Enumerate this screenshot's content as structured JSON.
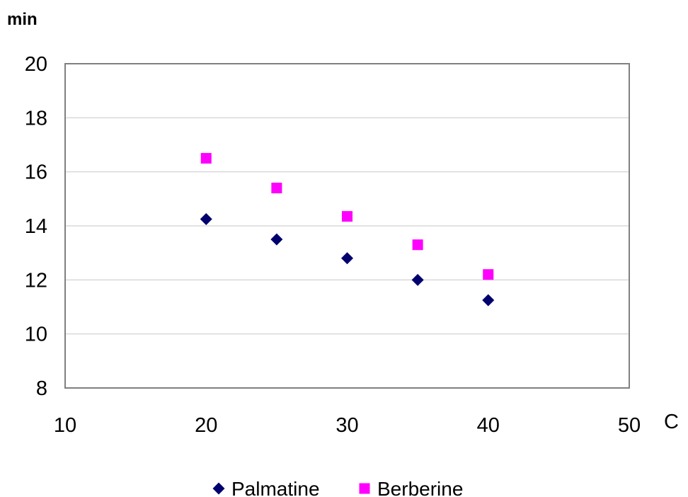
{
  "chart_data": {
    "type": "scatter",
    "xlabel": "C",
    "ylabel": "min",
    "xlim": [
      10,
      50
    ],
    "ylim": [
      8,
      20
    ],
    "x_ticks": [
      "10",
      "20",
      "30",
      "40",
      "50"
    ],
    "y_ticks": [
      "8",
      "10",
      "12",
      "14",
      "16",
      "18",
      "20"
    ],
    "grid": "horizontal",
    "legend_position": "bottom",
    "series": [
      {
        "name": "Palmatine",
        "marker": "diamond",
        "color": "#00006e",
        "points": [
          {
            "x": 20,
            "y": 14.25
          },
          {
            "x": 25,
            "y": 13.5
          },
          {
            "x": 30,
            "y": 12.8
          },
          {
            "x": 35,
            "y": 12.0
          },
          {
            "x": 40,
            "y": 11.25
          }
        ]
      },
      {
        "name": "Berberine",
        "marker": "square",
        "color": "#ff00ff",
        "points": [
          {
            "x": 20,
            "y": 16.5
          },
          {
            "x": 25,
            "y": 15.4
          },
          {
            "x": 30,
            "y": 14.35
          },
          {
            "x": 35,
            "y": 13.3
          },
          {
            "x": 40,
            "y": 12.2
          }
        ]
      }
    ]
  }
}
